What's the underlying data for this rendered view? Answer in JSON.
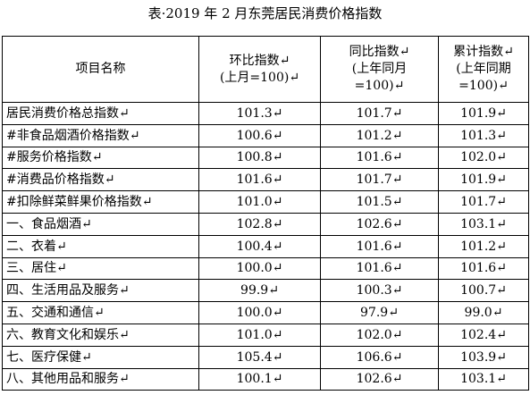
{
  "title": "表·2019 年 2 月东莞居民消费价格指数",
  "table": {
    "header": [
      [
        "项目名称"
      ],
      [
        "环比指数↵",
        "(上月=100)↵"
      ],
      [
        "同比指数↵",
        "(上年同月",
        "=100)↵"
      ],
      [
        "累计指数↵",
        "(上年同期",
        "=100)↵"
      ]
    ],
    "rows": [
      [
        "居民消费价格总指数↵",
        "101.3↵",
        "101.7↵",
        "101.9↵"
      ],
      [
        "#非食品烟酒价格指数↵",
        "100.6↵",
        "101.2↵",
        "101.3↵"
      ],
      [
        "#服务价格指数↵",
        "100.8↵",
        "101.6↵",
        "102.0↵"
      ],
      [
        "#消费品价格指数↵",
        "101.6↵",
        "101.7↵",
        "101.9↵"
      ],
      [
        "#扣除鲜菜鲜果价格指数↵",
        "101.0↵",
        "101.5↵",
        "101.7↵"
      ],
      [
        "一、食品烟酒↵",
        "102.8↵",
        "102.6↵",
        "103.1↵"
      ],
      [
        "二、衣着↵",
        "100.4↵",
        "101.6↵",
        "101.2↵"
      ],
      [
        "三、居住↵",
        "100.0↵",
        "101.6↵",
        "101.6↵"
      ],
      [
        "四、生活用品及服务↵",
        "99.9↵",
        "100.3↵",
        "100.7↵"
      ],
      [
        "五、交通和通信↵",
        "100.0↵",
        "97.9↵",
        "99.0↵"
      ],
      [
        "六、教育文化和娱乐↵",
        "101.0↵",
        "102.0↵",
        "102.4↵"
      ],
      [
        "七、医疗保健↵",
        "105.4↵",
        "106.6↵",
        "103.9↵"
      ],
      [
        "八、其他用品和服务↵",
        "100.1↵",
        "102.6↵",
        "103.1↵"
      ]
    ]
  }
}
